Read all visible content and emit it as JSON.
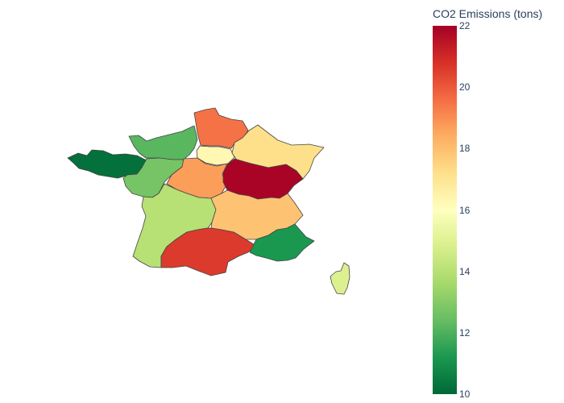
{
  "colorbar": {
    "title": "CO2 Emissions (tons)",
    "min": 10,
    "max": 22,
    "ticks": [
      "10",
      "12",
      "14",
      "16",
      "18",
      "20",
      "22"
    ],
    "tick_values": [
      10,
      12,
      14,
      16,
      18,
      20,
      22
    ],
    "colorscale": [
      "#006837",
      "#1a9850",
      "#66bd63",
      "#a6d96a",
      "#d9ef8b",
      "#ffffbf",
      "#fee08b",
      "#fdae61",
      "#f46d43",
      "#d73027",
      "#a50026"
    ]
  },
  "regions": [
    {
      "id": "bretagne",
      "value": 10.2
    },
    {
      "id": "normandie",
      "value": 12.2
    },
    {
      "id": "hauts-de-france",
      "value": 19.5
    },
    {
      "id": "ile-de-france",
      "value": 16.3
    },
    {
      "id": "grand-est",
      "value": 17.2
    },
    {
      "id": "pays-de-la-loire",
      "value": 12.7
    },
    {
      "id": "centre-val-de-loire",
      "value": 18.7
    },
    {
      "id": "bourgogne-franche-comte",
      "value": 21.9
    },
    {
      "id": "nouvelle-aquitaine",
      "value": 14.0
    },
    {
      "id": "auvergne-rhone-alpes",
      "value": 17.9
    },
    {
      "id": "occitanie",
      "value": 20.6
    },
    {
      "id": "provence-alpes-cote-d-azur",
      "value": 11.2
    },
    {
      "id": "corse",
      "value": 14.9
    }
  ]
}
